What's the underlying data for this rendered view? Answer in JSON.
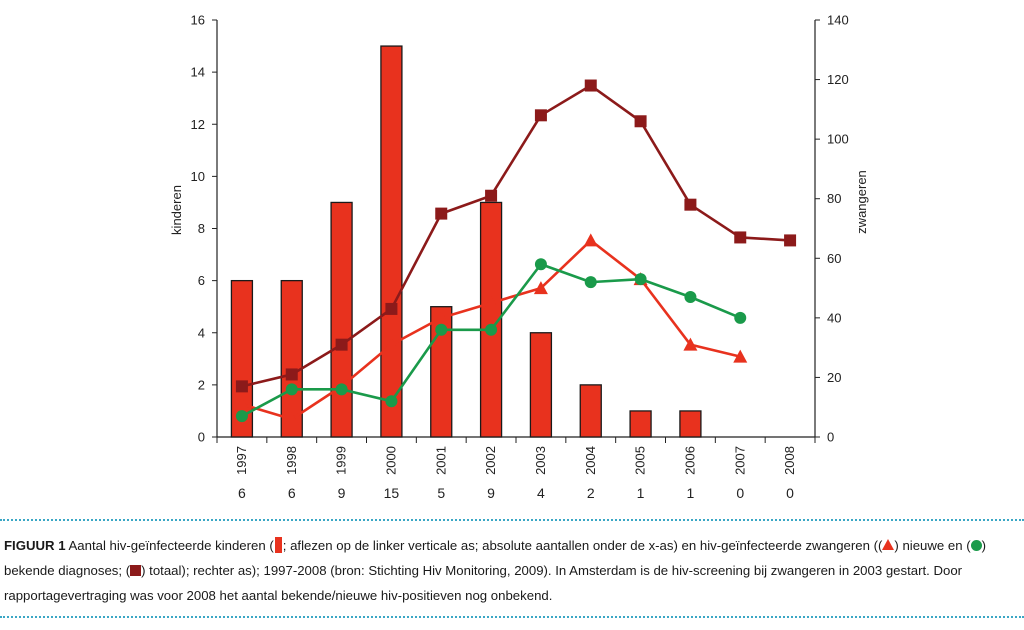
{
  "chart_data": {
    "type": "bar+line",
    "categories": [
      "1997",
      "1998",
      "1999",
      "2000",
      "2001",
      "2002",
      "2003",
      "2004",
      "2005",
      "2006",
      "2007",
      "2008"
    ],
    "left_axis": {
      "label": "kinderen",
      "min": 0,
      "max": 16,
      "ticks": [
        0,
        2,
        4,
        6,
        8,
        10,
        12,
        14,
        16
      ]
    },
    "right_axis": {
      "label": "zwangeren",
      "min": 0,
      "max": 140,
      "ticks": [
        0,
        20,
        40,
        60,
        80,
        100,
        120,
        140
      ]
    },
    "bars": {
      "name": "hiv-geïnfecteerde kinderen",
      "axis": "left",
      "color": "#e8321e",
      "values": [
        6,
        6,
        9,
        15,
        5,
        9,
        4,
        2,
        1,
        1,
        0,
        0
      ]
    },
    "counts_row": [
      "6",
      "6",
      "9",
      "15",
      "5",
      "9",
      "4",
      "2",
      "1",
      "1",
      "0",
      "0"
    ],
    "series": [
      {
        "name": "totaal",
        "axis": "right",
        "marker": "square",
        "color": "#8c1a1a",
        "values": [
          17,
          21,
          31,
          43,
          75,
          81,
          108,
          118,
          106,
          78,
          67,
          66
        ]
      },
      {
        "name": "nieuwe",
        "axis": "right",
        "marker": "triangle",
        "color": "#e8321e",
        "values": [
          11,
          6,
          17,
          31,
          40,
          45,
          50,
          66,
          53,
          31,
          27,
          null
        ]
      },
      {
        "name": "bekende diagnoses",
        "axis": "right",
        "marker": "circle",
        "color": "#1a9a4a",
        "values": [
          7,
          16,
          16,
          12,
          36,
          36,
          58,
          52,
          53,
          47,
          40,
          null
        ]
      }
    ]
  },
  "caption": {
    "label": "FIGUUR 1",
    "t1": "Aantal hiv-geïnfecteerde kinderen (",
    "t2": "; aflezen op de linker verticale as; absolute aantallen onder de x-as) en hiv-geïnfecteerde zwangeren ((",
    "t3": ") nieuwe en (",
    "t4": ") bekende diagnoses; (",
    "t5": ") totaal); rechter as); 1997-2008 (bron: Stichting Hiv Monitoring, 2009). In Amsterdam is de hiv-screening bij zwangeren in 2003 gestart. Door rapportagevertraging was voor 2008 het aantal bekende/nieuwe hiv-positieven nog onbekend."
  }
}
